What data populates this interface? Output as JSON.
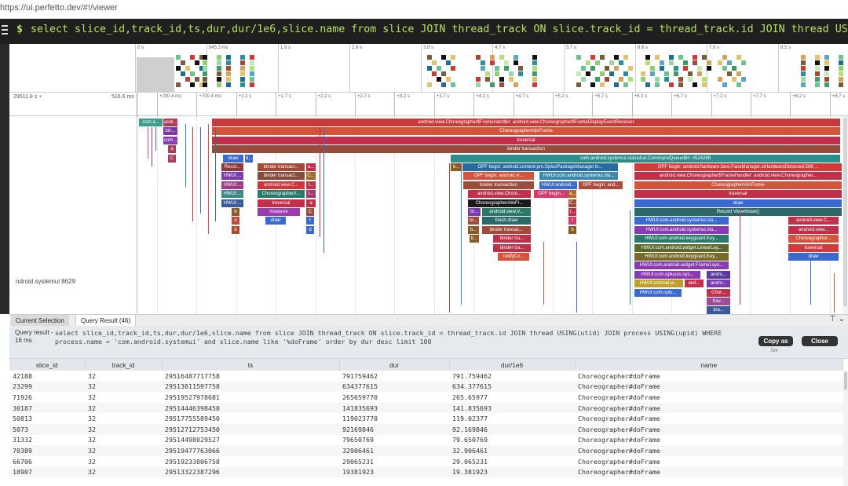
{
  "browser": {
    "url": "https://ui.perfetto.dev/#!/viewer"
  },
  "omnibox": {
    "prompt": "$",
    "query": "select slice_id,track_id,ts,dur,dur/1e6,slice.name from slice JOIN thread_track ON slice.track_id = thread_track.id JOIN thread USING(utid) JOIN process USING(upid) WHERE process.name = 'com.android.systemui' and slice.name like '%doFrame' order by dur desc limit 100"
  },
  "overview": {
    "ticks": [
      "0 s",
      "945.3 ms",
      "1.9 s",
      "2.8 s",
      "3.8 s",
      "4.7 s",
      "5.7 s",
      "6.6 s",
      "7.6 s",
      "8.5 s"
    ]
  },
  "timeline": {
    "left_time": "29511.8 s +",
    "left_offset": "516.6 ms",
    "ticks": [
      "+200.4 ms",
      "+700.4 ms",
      "+1.2 s",
      "+1.7 s",
      "+2.2 s",
      "+2.7 s",
      "+3.2 s",
      "+3.7 s",
      "+4.2 s",
      "+4.7 s",
      "+5.2 s",
      "+5.7 s",
      "+6.2 s",
      "+6.7 s",
      "+7.2 s",
      "+7.7 s",
      "+8.2 s",
      "+8.7 s"
    ]
  },
  "track": {
    "name": "ndroid.systemui 8629"
  },
  "slices": [
    "com.a...",
    "andr...",
    "android.view.Choreographer$FrameHandler: android.view.Choreographer$FrameDisplayEventReceiver",
    "bin...",
    "Choreographer#doFrame",
    "com...",
    "traversal",
    "a",
    "binder transaction",
    "C",
    "draw",
    "d...",
    "com.android.systemui.statusbar.CommandQueue$H: #524288",
    "Recor...",
    "binder transact...",
    "a...",
    "b...",
    "OPF begin: android.content.pm.OplusPackageManager.In...",
    "OPF begin: android.hardware.face.FaceManager.isHardwareDetected:568 ...",
    "HWUI:...",
    "binder transact...",
    "C...",
    "OPF begin: android.vi...",
    "HWUI:com.android.systemui.sta...",
    "android.view.Choreographer$FrameHandler: android.view.Choreographer...",
    "HWUI:...",
    "android.view.C...",
    "t...",
    "binder transaction",
    "HWUI:android...",
    "OPF begin: and...",
    "Choreographer#doFrame",
    "HWUI:...",
    "Choreographer#...",
    "t...",
    "android.view.Chore...",
    "OPF begin...",
    "a...",
    "traversal",
    "HWUI:...",
    "traversal",
    "a",
    "Choreographer#doFr...",
    "C...",
    "draw",
    "b",
    "measure",
    "C",
    "bi...",
    "android.view.V...",
    "t...",
    "Record View#draw()",
    "o",
    "draw",
    "t",
    "bi...",
    "finish draw",
    "t",
    "HWUI:com.android.systemui.sta...",
    "android.view.C...",
    "b",
    "d",
    "b...",
    "binder transac...",
    "b",
    "HWUI:com.android.systemui.sta...",
    "android.view...",
    "b...",
    "binder tra...",
    "HWUI:com.android.keyguard.Key...",
    "Choreographer...",
    "binder tra...",
    "HWUI:com.android.widget.LinearLay...",
    "traversal",
    "notifyCo...",
    "HWUI:com.android.keyguard.Key...",
    "draw",
    "HWUI:com.android.widget.FrameLayo...",
    "HWUI:com.oplusos.sys...",
    "andro...",
    "HWUI:android.w...",
    "and...",
    "andro...",
    "HWUI:com.oplu...",
    "Chor...",
    "trav...",
    "dra..."
  ],
  "details": {
    "tabs": [
      "Current Selection",
      "Query Result (46)"
    ],
    "query_label": "Query result - 16 ms",
    "query_text": "select slice_id,track_id,ts,dur,dur/1e6,slice.name from slice JOIN thread_track ON slice.track_id = thread_track.id JOIN thread USING(utid) JOIN process USING(upid) WHERE process.name = 'com.android.systemui' and slice.name like '%doFrame' order by dur desc limit 100",
    "copy_button": "Copy as",
    "copy_sub": ".tsv",
    "close_button": "Close"
  },
  "results": {
    "columns": [
      "slice_id",
      "track_id",
      "ts",
      "dur",
      "dur/1e6",
      "name"
    ],
    "rows": [
      [
        "42188",
        "32",
        "29516487717758",
        "791759462",
        "791.759462",
        "Choreographer#doFrame"
      ],
      [
        "23299",
        "32",
        "29513811597758",
        "634377615",
        "634.377615",
        "Choreographer#doFrame"
      ],
      [
        "71926",
        "32",
        "29519527978681",
        "265659770",
        "265.65977",
        "Choreographer#doFrame"
      ],
      [
        "30187",
        "32",
        "29514446398450",
        "141835693",
        "141.835693",
        "Choreographer#doFrame"
      ],
      [
        "50813",
        "32",
        "29517755589450",
        "119023770",
        "119.02377",
        "Choreographer#doFrame"
      ],
      [
        "5073",
        "32",
        "29512712753450",
        "92169846",
        "92.169846",
        "Choreographer#doFrame"
      ],
      [
        "31332",
        "32",
        "29514498029527",
        "79650769",
        "79.650769",
        "Choreographer#doFrame"
      ],
      [
        "70389",
        "32",
        "29519477763066",
        "32906461",
        "32.906461",
        "Choreographer#doFrame"
      ],
      [
        "66706",
        "32",
        "29519233806758",
        "29065231",
        "29.065231",
        "Choreographer#doFrame"
      ],
      [
        "18907",
        "32",
        "29513322387296",
        "19381923",
        "19.381923",
        "Choreographer#doFrame"
      ]
    ]
  }
}
